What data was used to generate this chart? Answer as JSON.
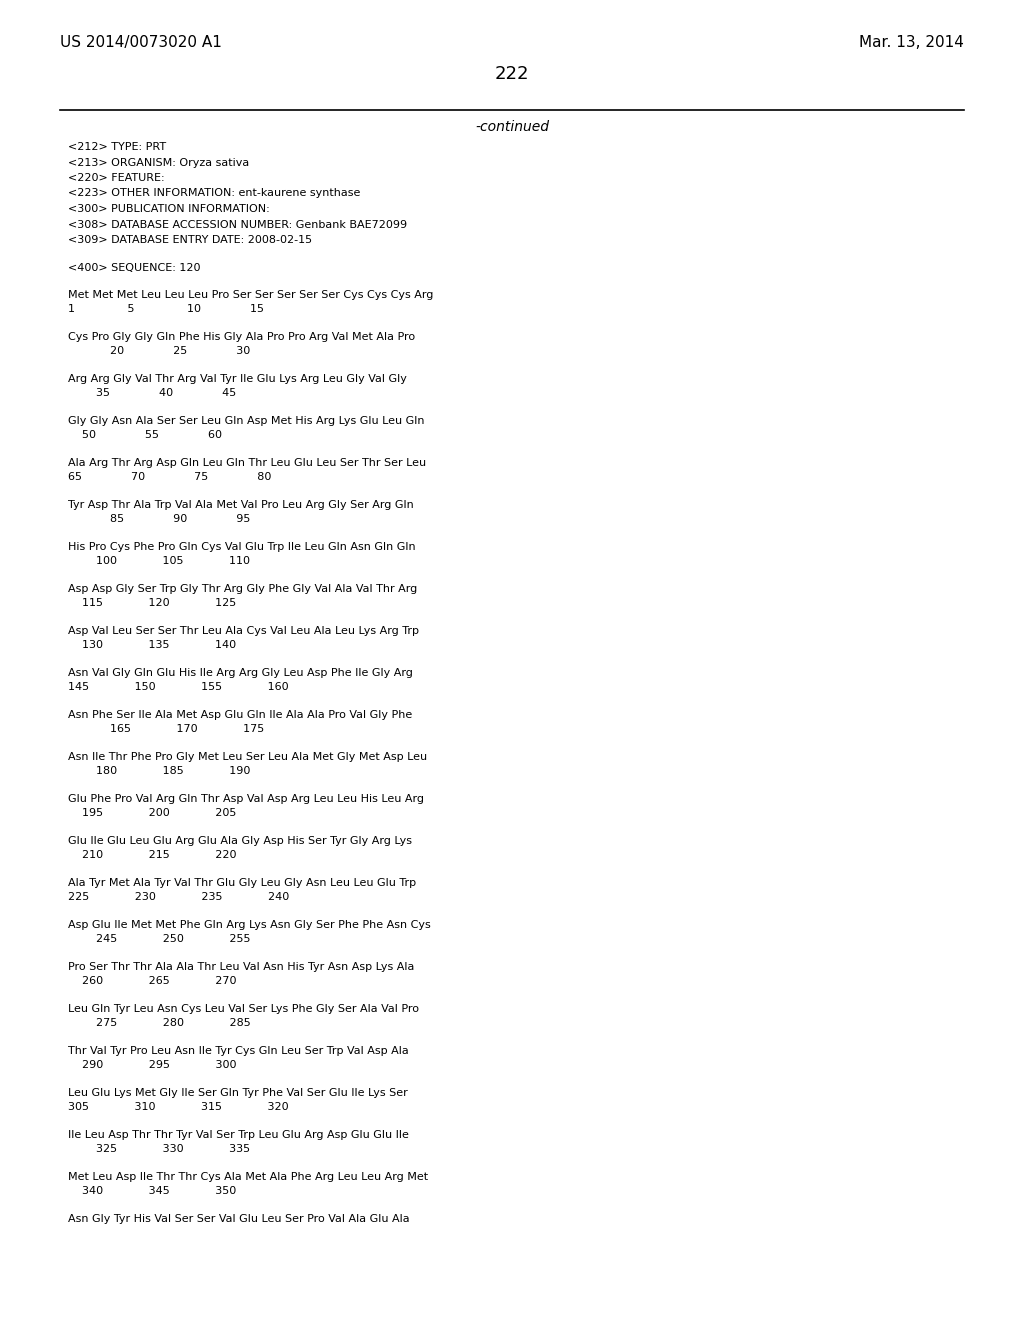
{
  "header_left": "US 2014/0073020 A1",
  "header_right": "Mar. 13, 2014",
  "page_number": "222",
  "continued_text": "-continued",
  "background_color": "#ffffff",
  "text_color": "#000000",
  "metadata_lines": [
    "<212> TYPE: PRT",
    "<213> ORGANISM: Oryza sativa",
    "<220> FEATURE:",
    "<223> OTHER INFORMATION: ent-kaurene synthase",
    "<300> PUBLICATION INFORMATION:",
    "<308> DATABASE ACCESSION NUMBER: Genbank BAE72099",
    "<309> DATABASE ENTRY DATE: 2008-02-15"
  ],
  "sequence_header": "<400> SEQUENCE: 120",
  "sequence_blocks": [
    {
      "seq_line": "Met Met Met Leu Leu Leu Pro Ser Ser Ser Ser Ser Cys Cys Cys Arg",
      "num_line": "1               5               10              15"
    },
    {
      "seq_line": "Cys Pro Gly Gly Gln Phe His Gly Ala Pro Pro Arg Val Met Ala Pro",
      "num_line": "            20              25              30"
    },
    {
      "seq_line": "Arg Arg Gly Val Thr Arg Val Tyr Ile Glu Lys Arg Leu Gly Val Gly",
      "num_line": "        35              40              45"
    },
    {
      "seq_line": "Gly Gly Asn Ala Ser Ser Leu Gln Asp Met His Arg Lys Glu Leu Gln",
      "num_line": "    50              55              60"
    },
    {
      "seq_line": "Ala Arg Thr Arg Asp Gln Leu Gln Thr Leu Glu Leu Ser Thr Ser Leu",
      "num_line": "65              70              75              80"
    },
    {
      "seq_line": "Tyr Asp Thr Ala Trp Val Ala Met Val Pro Leu Arg Gly Ser Arg Gln",
      "num_line": "            85              90              95"
    },
    {
      "seq_line": "His Pro Cys Phe Pro Gln Cys Val Glu Trp Ile Leu Gln Asn Gln Gln",
      "num_line": "        100             105             110"
    },
    {
      "seq_line": "Asp Asp Gly Ser Trp Gly Thr Arg Gly Phe Gly Val Ala Val Thr Arg",
      "num_line": "    115             120             125"
    },
    {
      "seq_line": "Asp Val Leu Ser Ser Thr Leu Ala Cys Val Leu Ala Leu Lys Arg Trp",
      "num_line": "    130             135             140"
    },
    {
      "seq_line": "Asn Val Gly Gln Glu His Ile Arg Arg Gly Leu Asp Phe Ile Gly Arg",
      "num_line": "145             150             155             160"
    },
    {
      "seq_line": "Asn Phe Ser Ile Ala Met Asp Glu Gln Ile Ala Ala Pro Val Gly Phe",
      "num_line": "            165             170             175"
    },
    {
      "seq_line": "Asn Ile Thr Phe Pro Gly Met Leu Ser Leu Ala Met Gly Met Asp Leu",
      "num_line": "        180             185             190"
    },
    {
      "seq_line": "Glu Phe Pro Val Arg Gln Thr Asp Val Asp Arg Leu Leu His Leu Arg",
      "num_line": "    195             200             205"
    },
    {
      "seq_line": "Glu Ile Glu Leu Glu Arg Glu Ala Gly Asp His Ser Tyr Gly Arg Lys",
      "num_line": "    210             215             220"
    },
    {
      "seq_line": "Ala Tyr Met Ala Tyr Val Thr Glu Gly Leu Gly Asn Leu Leu Glu Trp",
      "num_line": "225             230             235             240"
    },
    {
      "seq_line": "Asp Glu Ile Met Met Phe Gln Arg Lys Asn Gly Ser Phe Phe Asn Cys",
      "num_line": "        245             250             255"
    },
    {
      "seq_line": "Pro Ser Thr Thr Ala Ala Thr Leu Val Asn His Tyr Asn Asp Lys Ala",
      "num_line": "    260             265             270"
    },
    {
      "seq_line": "Leu Gln Tyr Leu Asn Cys Leu Val Ser Lys Phe Gly Ser Ala Val Pro",
      "num_line": "        275             280             285"
    },
    {
      "seq_line": "Thr Val Tyr Pro Leu Asn Ile Tyr Cys Gln Leu Ser Trp Val Asp Ala",
      "num_line": "    290             295             300"
    },
    {
      "seq_line": "Leu Glu Lys Met Gly Ile Ser Gln Tyr Phe Val Ser Glu Ile Lys Ser",
      "num_line": "305             310             315             320"
    },
    {
      "seq_line": "Ile Leu Asp Thr Thr Tyr Val Ser Trp Leu Glu Arg Asp Glu Glu Ile",
      "num_line": "        325             330             335"
    },
    {
      "seq_line": "Met Leu Asp Ile Thr Thr Cys Ala Met Ala Phe Arg Leu Leu Arg Met",
      "num_line": "    340             345             350"
    },
    {
      "seq_line": "Asn Gly Tyr His Val Ser Ser Val Glu Leu Ser Pro Val Ala Glu Ala",
      "num_line": ""
    }
  ]
}
